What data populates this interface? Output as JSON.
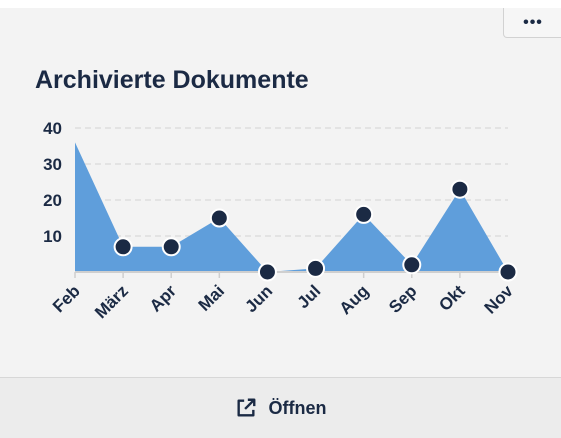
{
  "card": {
    "title": "Archivierte Dokumente",
    "more_label": "•••",
    "open_label": "Öffnen",
    "open_icon": "external-link-icon"
  },
  "colors": {
    "area": "#5f9edb",
    "marker": "#1b2a44",
    "text": "#1b2a44",
    "grid": "#d9d9d9"
  },
  "chart_data": {
    "type": "area",
    "title": "Archivierte Dokumente",
    "xlabel": "",
    "ylabel": "",
    "categories": [
      "Feb",
      "März",
      "Apr",
      "Mai",
      "Jun",
      "Jul",
      "Aug",
      "Sep",
      "Okt",
      "Nov"
    ],
    "values": [
      36,
      7,
      7,
      15,
      0,
      1,
      16,
      2,
      23,
      0
    ],
    "markers": [
      false,
      true,
      true,
      true,
      true,
      true,
      true,
      true,
      true,
      true
    ],
    "yticks": [
      10,
      20,
      30,
      40
    ],
    "ylim": [
      0,
      40
    ],
    "grid": true,
    "legend": "none"
  }
}
